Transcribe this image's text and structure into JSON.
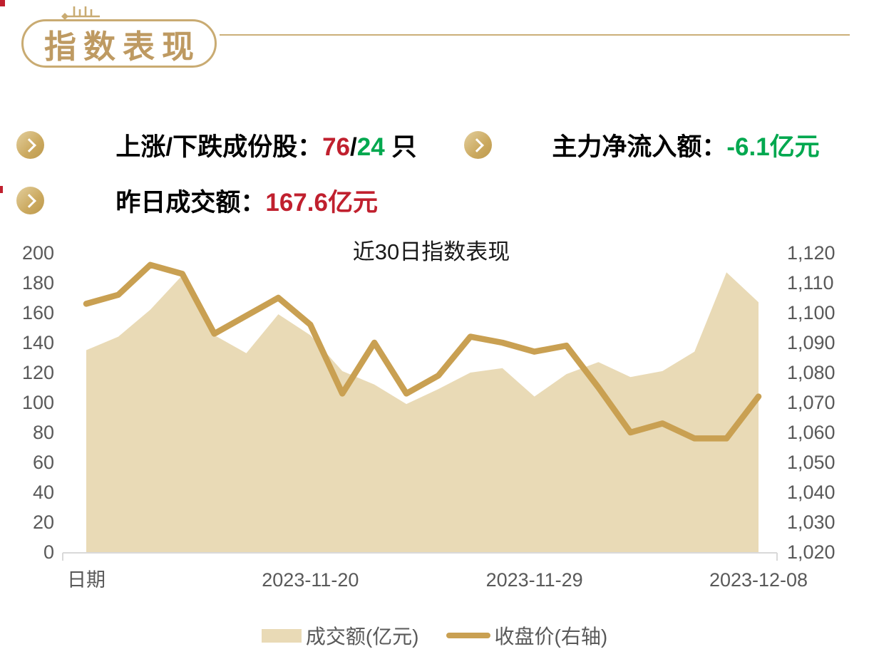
{
  "header": {
    "title": "指数表现"
  },
  "stats": {
    "up_down": {
      "label": "上涨/下跌成份股：",
      "up": "76",
      "separator": "/",
      "down": "24",
      "unit": " 只"
    },
    "net_inflow": {
      "label": "主力净流入额：",
      "value": "-6.1亿元"
    },
    "turnover": {
      "label": "昨日成交额：",
      "value": "167.6亿元"
    }
  },
  "chart_data": {
    "type": "combo",
    "title": "近30日指数表现",
    "x_axis": {
      "tick_labels": [
        "日期",
        "2023-11-20",
        "2023-11-29",
        "2023-12-08"
      ],
      "tick_indices": [
        0,
        7,
        14,
        21
      ]
    },
    "left_axis": {
      "min": 0,
      "max": 200,
      "step": 20,
      "tick_labels": [
        "200",
        "180",
        "160",
        "140",
        "120",
        "100",
        "80",
        "60",
        "40",
        "20",
        "0"
      ]
    },
    "right_axis": {
      "min": 1020,
      "max": 1120,
      "step": 10,
      "tick_labels": [
        "1,120",
        "1,110",
        "1,100",
        "1,090",
        "1,080",
        "1,070",
        "1,060",
        "1,050",
        "1,040",
        "1,030",
        "1,020"
      ]
    },
    "series": [
      {
        "name": "成交额(亿元)",
        "type": "area",
        "axis": "left",
        "values": [
          135,
          144,
          162,
          185,
          145,
          133,
          159,
          145,
          121,
          112,
          99,
          109,
          120,
          123,
          104,
          119,
          127,
          117,
          121,
          134,
          187,
          167
        ]
      },
      {
        "name": "收盘价(右轴)",
        "type": "line",
        "axis": "right",
        "values": [
          1103,
          1106,
          1116,
          1113,
          1093,
          1099,
          1105,
          1096,
          1073,
          1090,
          1073,
          1079,
          1092,
          1090,
          1087,
          1089,
          1075,
          1060,
          1063,
          1058,
          1058,
          1072
        ]
      }
    ],
    "legend_position": "bottom",
    "grid": false,
    "colors": {
      "area": "#E9DAB6",
      "line": "#C9A052",
      "axis_text": "#595959",
      "axis_line": "#D9D9D9"
    }
  },
  "theme": {
    "gold": "#BE9A62",
    "gold_border": "#C9AB72",
    "red": "#C0202E",
    "green": "#00A84F"
  }
}
